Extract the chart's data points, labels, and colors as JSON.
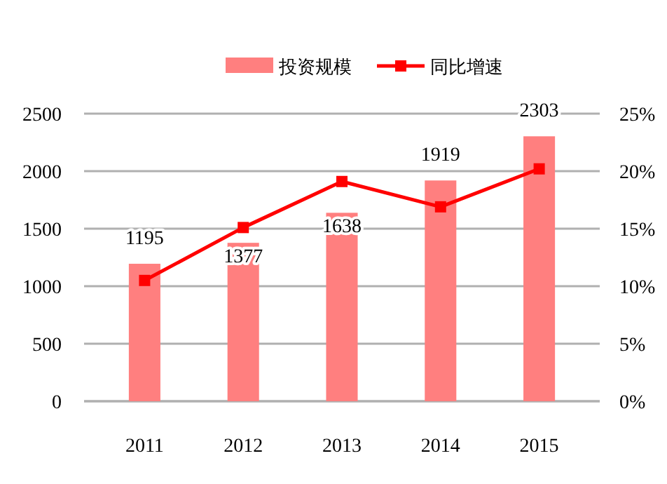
{
  "chart_data": {
    "type": "bar",
    "categories": [
      "2011",
      "2012",
      "2013",
      "2014",
      "2015"
    ],
    "series": [
      {
        "name": "投资规模",
        "color": "#ff7f7f",
        "values": [
          1195,
          1377,
          1638,
          1919,
          2303
        ],
        "value_labels": [
          "1195",
          "1377",
          "1638",
          "1919",
          "2303"
        ]
      },
      {
        "name": "同比增速",
        "type": "line",
        "axis": "y2",
        "color": "#ff0000",
        "marker": "square",
        "values": [
          10.5,
          15.1,
          19.1,
          16.9,
          20.2
        ]
      }
    ],
    "ylim": [
      0,
      2500
    ],
    "yticks": [
      0,
      500,
      1000,
      1500,
      2000,
      2500
    ],
    "y2lim": [
      0,
      25
    ],
    "y2ticks": [
      {
        "value": 0,
        "label": "0%"
      },
      {
        "value": 5,
        "label": "5%"
      },
      {
        "value": 10,
        "label": "10%"
      },
      {
        "value": 15,
        "label": "15%"
      },
      {
        "value": 20,
        "label": "20%"
      },
      {
        "value": 25,
        "label": "25%"
      }
    ],
    "grid": "y",
    "legend": "top"
  }
}
